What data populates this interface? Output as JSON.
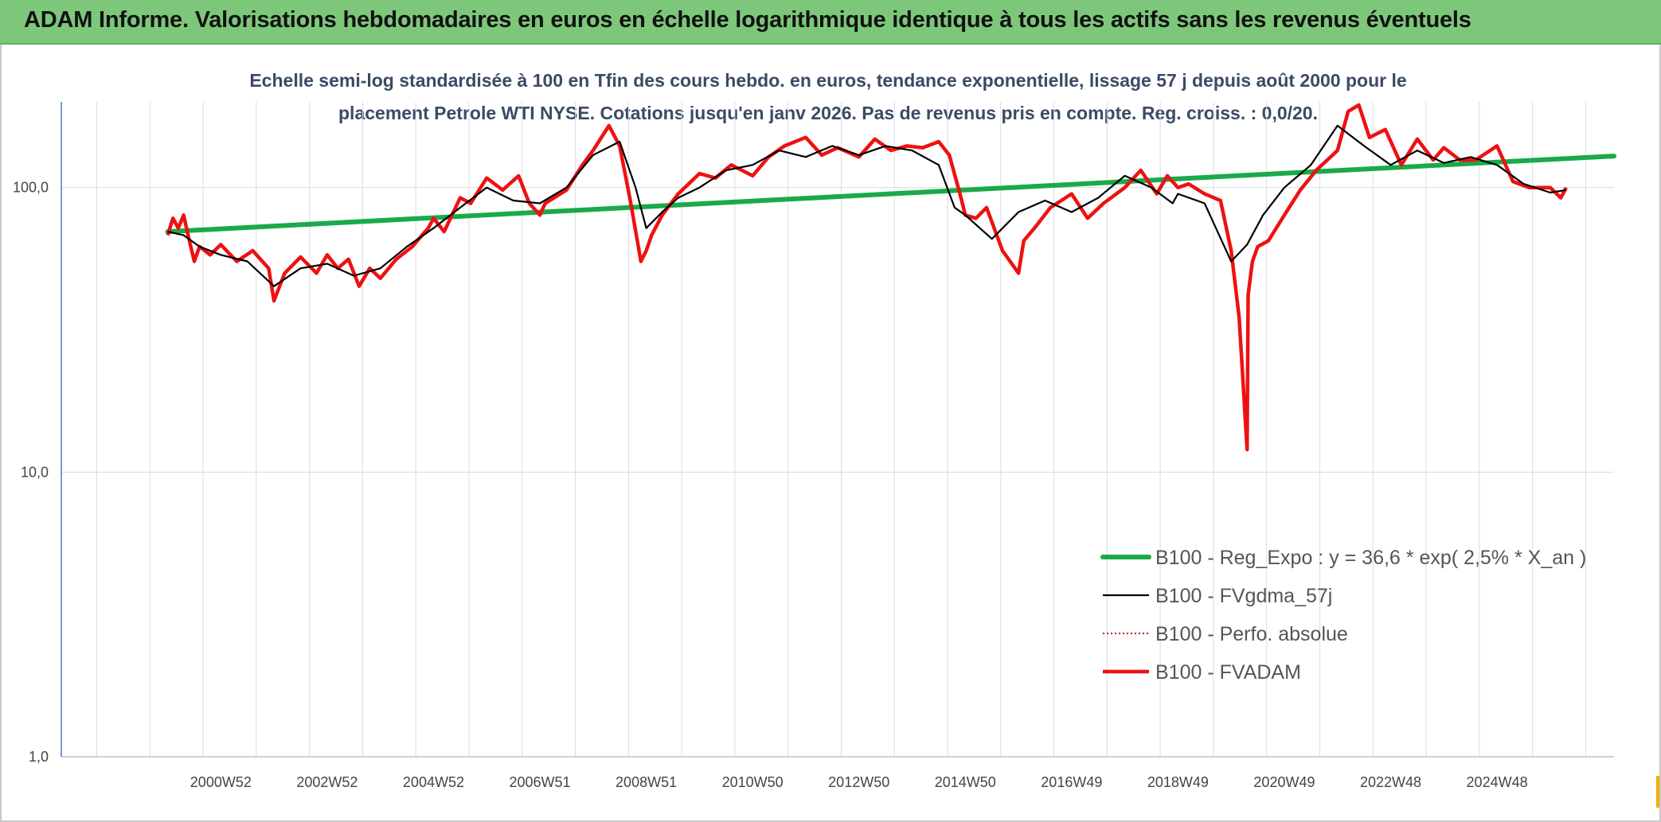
{
  "header": {
    "title": "ADAM Informe. Valorisations hebdomadaires en euros en échelle logarithmique identique à tous les actifs sans les revenus éventuels"
  },
  "colors": {
    "banner": "#7dc77a",
    "regression": "#1aaa4a",
    "smoothed": "#000000",
    "fvadam": "#ee1111",
    "perfo": "#cc0000",
    "subtitle": "#3b4a66"
  },
  "chart_data": {
    "type": "line",
    "title_line1": "Echelle semi-log standardisée à 100 en Tfin des cours hebdo. en euros, tendance exponentielle, lissage 57 j depuis août 2000 pour le",
    "title_line2": "placement Petrole WTI NYSE. Cotations jusqu'en janv 2026. Pas de revenus pris en compte. Reg. croiss. : 0,0/20.",
    "yscale": "log",
    "ylim": [
      1,
      200
    ],
    "yticks": [
      {
        "value": 1,
        "label": "1,0"
      },
      {
        "value": 10,
        "label": "10,0"
      },
      {
        "value": 100,
        "label": "100,0"
      }
    ],
    "xlim": [
      1998.0,
      2027.2
    ],
    "xticks": [
      {
        "pos": 2001.0,
        "label": "2000W52"
      },
      {
        "pos": 2003.0,
        "label": "2002W52"
      },
      {
        "pos": 2005.0,
        "label": "2004W52"
      },
      {
        "pos": 2007.0,
        "label": "2006W51"
      },
      {
        "pos": 2009.0,
        "label": "2008W51"
      },
      {
        "pos": 2011.0,
        "label": "2010W50"
      },
      {
        "pos": 2013.0,
        "label": "2012W50"
      },
      {
        "pos": 2015.0,
        "label": "2014W50"
      },
      {
        "pos": 2017.0,
        "label": "2016W49"
      },
      {
        "pos": 2019.0,
        "label": "2018W49"
      },
      {
        "pos": 2021.0,
        "label": "2020W49"
      },
      {
        "pos": 2023.0,
        "label": "2022W48"
      },
      {
        "pos": 2025.0,
        "label": "2024W48"
      }
    ],
    "legend_position": "lower-right",
    "series": [
      {
        "name": "B100 - Reg_Expo : y = 36,6 * exp( 2,5% *  X_an )",
        "style": "thick-green",
        "x": [
          2000.0,
          2027.2
        ],
        "y": [
          70,
          129
        ]
      },
      {
        "name": "B100 - FVgdma_57j",
        "style": "thin-black",
        "x": [
          2000.0,
          2000.3,
          2000.6,
          2001.0,
          2001.5,
          2002.0,
          2002.5,
          2003.0,
          2003.5,
          2004.0,
          2004.5,
          2005.0,
          2005.5,
          2006.0,
          2006.5,
          2007.0,
          2007.5,
          2008.0,
          2008.5,
          2008.8,
          2009.0,
          2009.3,
          2009.6,
          2010.0,
          2010.5,
          2011.0,
          2011.5,
          2012.0,
          2012.5,
          2013.0,
          2013.5,
          2014.0,
          2014.5,
          2014.8,
          2015.0,
          2015.5,
          2016.0,
          2016.5,
          2017.0,
          2017.5,
          2018.0,
          2018.5,
          2018.9,
          2019.0,
          2019.5,
          2020.0,
          2020.3,
          2020.6,
          2021.0,
          2021.5,
          2022.0,
          2022.5,
          2023.0,
          2023.5,
          2024.0,
          2024.5,
          2025.0,
          2025.5,
          2026.0,
          2026.3
        ],
        "y": [
          70,
          68,
          62,
          58,
          55,
          45,
          52,
          54,
          49,
          52,
          62,
          72,
          85,
          100,
          90,
          88,
          100,
          130,
          145,
          100,
          72,
          82,
          92,
          100,
          115,
          120,
          135,
          128,
          140,
          130,
          140,
          135,
          120,
          85,
          80,
          66,
          82,
          90,
          82,
          92,
          110,
          100,
          88,
          95,
          88,
          55,
          63,
          80,
          100,
          120,
          165,
          140,
          120,
          135,
          122,
          128,
          120,
          103,
          96,
          98
        ]
      },
      {
        "name": "B100 - Perfo. absolue",
        "style": "dotted-red",
        "x": [],
        "y": []
      },
      {
        "name": "B100 - FVADAM",
        "style": "thick-red",
        "x": [
          2000.0,
          2000.1,
          2000.2,
          2000.3,
          2000.4,
          2000.5,
          2000.6,
          2000.8,
          2001.0,
          2001.3,
          2001.6,
          2001.9,
          2002.0,
          2002.2,
          2002.5,
          2002.8,
          2003.0,
          2003.2,
          2003.4,
          2003.6,
          2003.8,
          2004.0,
          2004.3,
          2004.6,
          2004.9,
          2005.0,
          2005.2,
          2005.5,
          2005.7,
          2006.0,
          2006.3,
          2006.6,
          2006.8,
          2007.0,
          2007.1,
          2007.5,
          2007.8,
          2008.0,
          2008.3,
          2008.5,
          2008.7,
          2008.9,
          2009.0,
          2009.1,
          2009.3,
          2009.6,
          2010.0,
          2010.3,
          2010.6,
          2011.0,
          2011.3,
          2011.6,
          2012.0,
          2012.3,
          2012.6,
          2013.0,
          2013.3,
          2013.6,
          2013.9,
          2014.2,
          2014.5,
          2014.7,
          2014.9,
          2015.0,
          2015.2,
          2015.4,
          2015.7,
          2016.0,
          2016.1,
          2016.3,
          2016.6,
          2017.0,
          2017.3,
          2017.6,
          2018.0,
          2018.3,
          2018.6,
          2018.8,
          2019.0,
          2019.2,
          2019.5,
          2019.8,
          2020.0,
          2020.15,
          2020.3,
          2020.32,
          2020.4,
          2020.5,
          2020.7,
          2021.0,
          2021.3,
          2021.6,
          2022.0,
          2022.2,
          2022.4,
          2022.6,
          2022.9,
          2023.2,
          2023.5,
          2023.8,
          2024.0,
          2024.3,
          2024.6,
          2025.0,
          2025.3,
          2025.6,
          2026.0,
          2026.2,
          2026.3
        ],
        "y": [
          68,
          78,
          72,
          80,
          66,
          55,
          62,
          58,
          63,
          55,
          60,
          52,
          40,
          50,
          57,
          50,
          58,
          52,
          56,
          45,
          52,
          48,
          56,
          62,
          72,
          78,
          70,
          92,
          88,
          108,
          98,
          110,
          88,
          80,
          88,
          98,
          120,
          135,
          165,
          140,
          90,
          55,
          60,
          68,
          80,
          95,
          112,
          108,
          120,
          110,
          128,
          140,
          150,
          130,
          138,
          128,
          148,
          135,
          140,
          138,
          145,
          130,
          95,
          80,
          78,
          85,
          60,
          50,
          65,
          72,
          85,
          95,
          78,
          88,
          100,
          115,
          95,
          110,
          100,
          103,
          95,
          90,
          60,
          35,
          12,
          42,
          55,
          62,
          65,
          80,
          98,
          115,
          135,
          185,
          195,
          150,
          160,
          120,
          148,
          125,
          138,
          125,
          125,
          140,
          105,
          100,
          100,
          92,
          100
        ]
      }
    ]
  }
}
